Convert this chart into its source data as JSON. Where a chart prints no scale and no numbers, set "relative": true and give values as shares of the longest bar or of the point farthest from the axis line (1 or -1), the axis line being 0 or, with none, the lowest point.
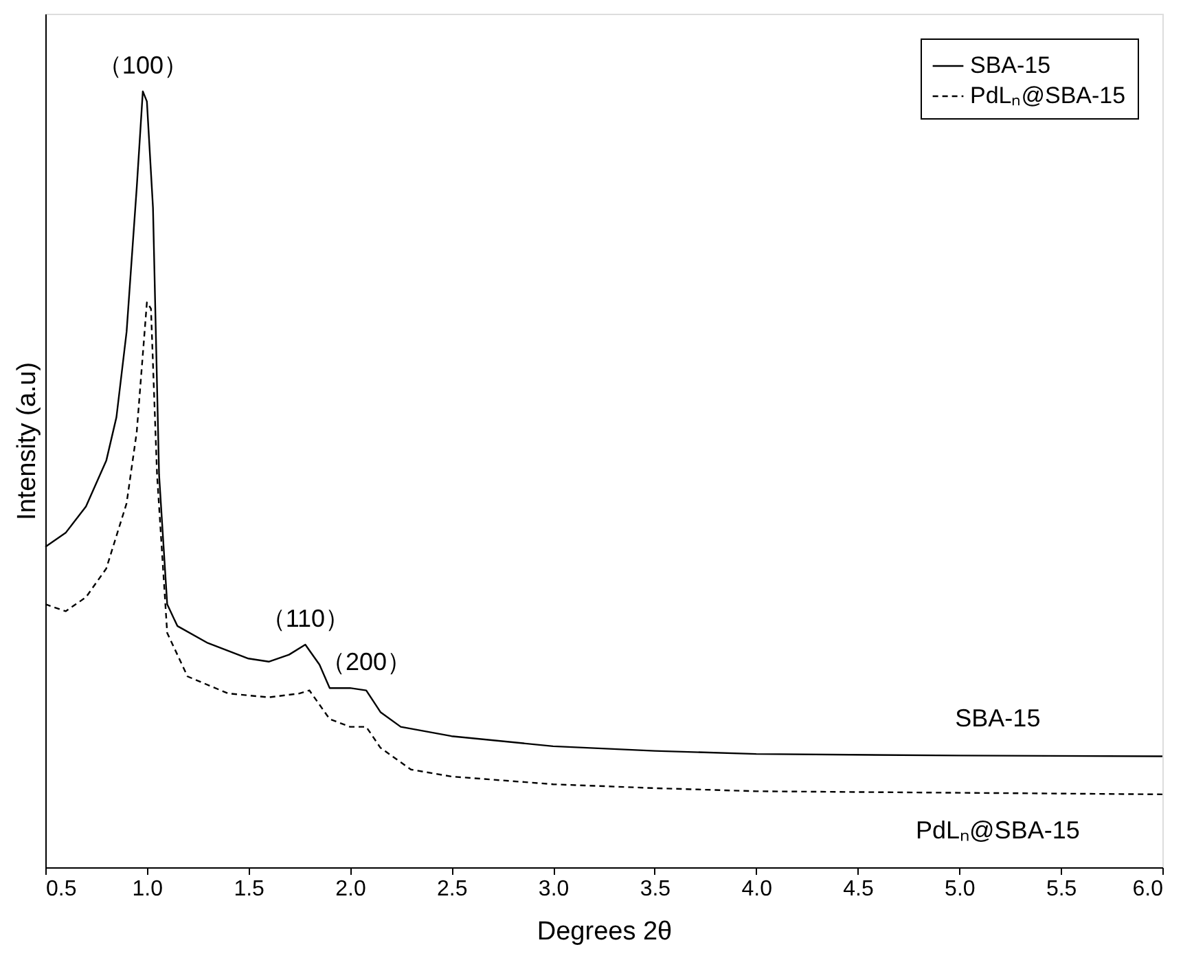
{
  "chart_data": {
    "type": "line",
    "relative": true,
    "xlabel": "Degrees 2θ",
    "ylabel": "Intensity (a.u)",
    "xlim": [
      0.5,
      6.0
    ],
    "xticks": [
      0.5,
      {
        "value": 1,
        "label": "1.0"
      },
      1.5,
      {
        "value": 2,
        "label": "2.0"
      },
      2.5,
      {
        "value": 3,
        "label": "3.0"
      },
      3.5,
      {
        "value": 4,
        "label": "4.0"
      },
      4.5,
      {
        "value": 5,
        "label": "5.0"
      },
      5.5,
      {
        "value": 6,
        "label": "6.0"
      }
    ],
    "grid": false,
    "legend": "top right",
    "marker": "none",
    "series": [
      {
        "name": "SBA-15",
        "color": "#000000",
        "line_style": "solid",
        "x": [
          0.5,
          0.6,
          0.7,
          0.8,
          0.85,
          0.9,
          0.95,
          0.98,
          1.0,
          1.03,
          1.06,
          1.1,
          1.15,
          1.3,
          1.5,
          1.6,
          1.7,
          1.78,
          1.85,
          1.9,
          2.0,
          2.08,
          2.15,
          2.25,
          2.5,
          3.0,
          3.5,
          4.0,
          5.0,
          6.0
        ],
        "values": [
          0.413,
          0.431,
          0.465,
          0.524,
          0.58,
          0.69,
          0.876,
          1.0,
          0.987,
          0.85,
          0.506,
          0.339,
          0.311,
          0.289,
          0.269,
          0.265,
          0.274,
          0.287,
          0.261,
          0.231,
          0.231,
          0.228,
          0.2,
          0.181,
          0.169,
          0.156,
          0.15,
          0.146,
          0.144,
          0.143
        ]
      },
      {
        "name": "PdLₙ@SBA-15",
        "color": "#000000",
        "line_style": "dashed",
        "x": [
          0.5,
          0.6,
          0.7,
          0.8,
          0.9,
          0.95,
          1.0,
          1.02,
          1.05,
          1.1,
          1.2,
          1.4,
          1.6,
          1.75,
          1.8,
          1.9,
          2.0,
          2.08,
          2.15,
          2.3,
          2.5,
          3.0,
          3.5,
          4.0,
          5.0,
          6.0
        ],
        "values": [
          0.339,
          0.33,
          0.348,
          0.385,
          0.469,
          0.561,
          0.728,
          0.72,
          0.506,
          0.302,
          0.246,
          0.224,
          0.219,
          0.224,
          0.228,
          0.191,
          0.181,
          0.181,
          0.154,
          0.126,
          0.117,
          0.107,
          0.102,
          0.098,
          0.096,
          0.094
        ]
      }
    ],
    "annotations": [
      {
        "text": "（100）",
        "x": 0.98,
        "y": 1.0
      },
      {
        "text": "（110）",
        "x": 1.78,
        "y": 0.287
      },
      {
        "text": "（200）",
        "x": 2.08,
        "y": 0.231
      }
    ]
  }
}
